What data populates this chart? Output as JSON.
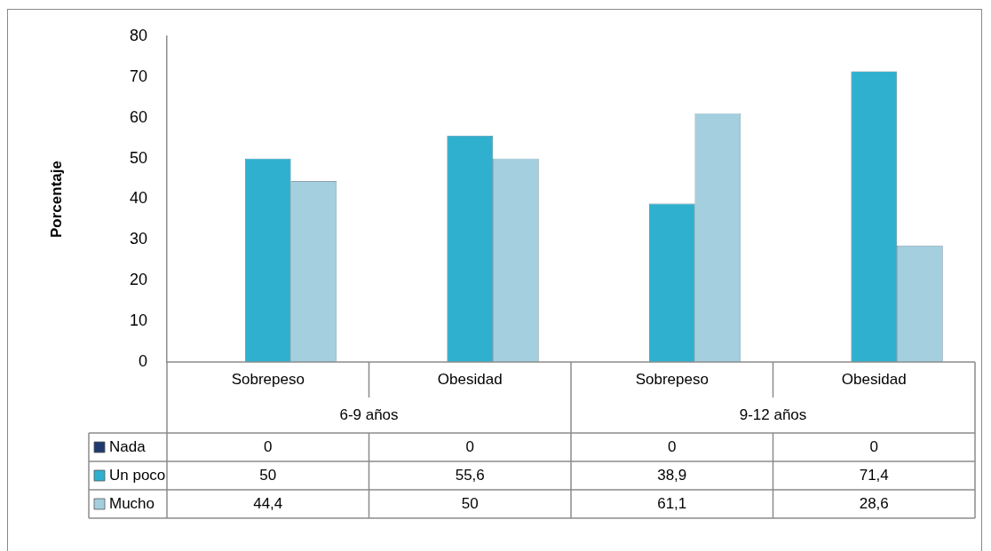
{
  "chart_data": {
    "type": "bar",
    "ylabel": "Porcentaje",
    "categories": [
      "Sobrepeso",
      "Obesidad",
      "Sobrepeso",
      "Obesidad"
    ],
    "annotations": [
      "6-9 años",
      "9-12 años"
    ],
    "series": [
      {
        "name": "Nada",
        "color": "#1f3a6e",
        "values": [
          0,
          0,
          0,
          0
        ]
      },
      {
        "name": "Un poco",
        "color": "#2fb0cf",
        "values": [
          50,
          55.6,
          38.9,
          71.4
        ]
      },
      {
        "name": "Mucho",
        "color": "#a3cfdf",
        "values": [
          44.4,
          50,
          61.1,
          28.6
        ]
      }
    ],
    "value_labels": [
      [
        "0",
        "0",
        "0",
        "0"
      ],
      [
        "50",
        "55,6",
        "38,9",
        "71,4"
      ],
      [
        "44,4",
        "50",
        "61,1",
        "28,6"
      ]
    ],
    "ylim": [
      0,
      80
    ],
    "yticks": [
      0,
      10,
      20,
      30,
      40,
      50,
      60,
      70,
      80
    ],
    "grid": false,
    "legend": "bottom"
  }
}
